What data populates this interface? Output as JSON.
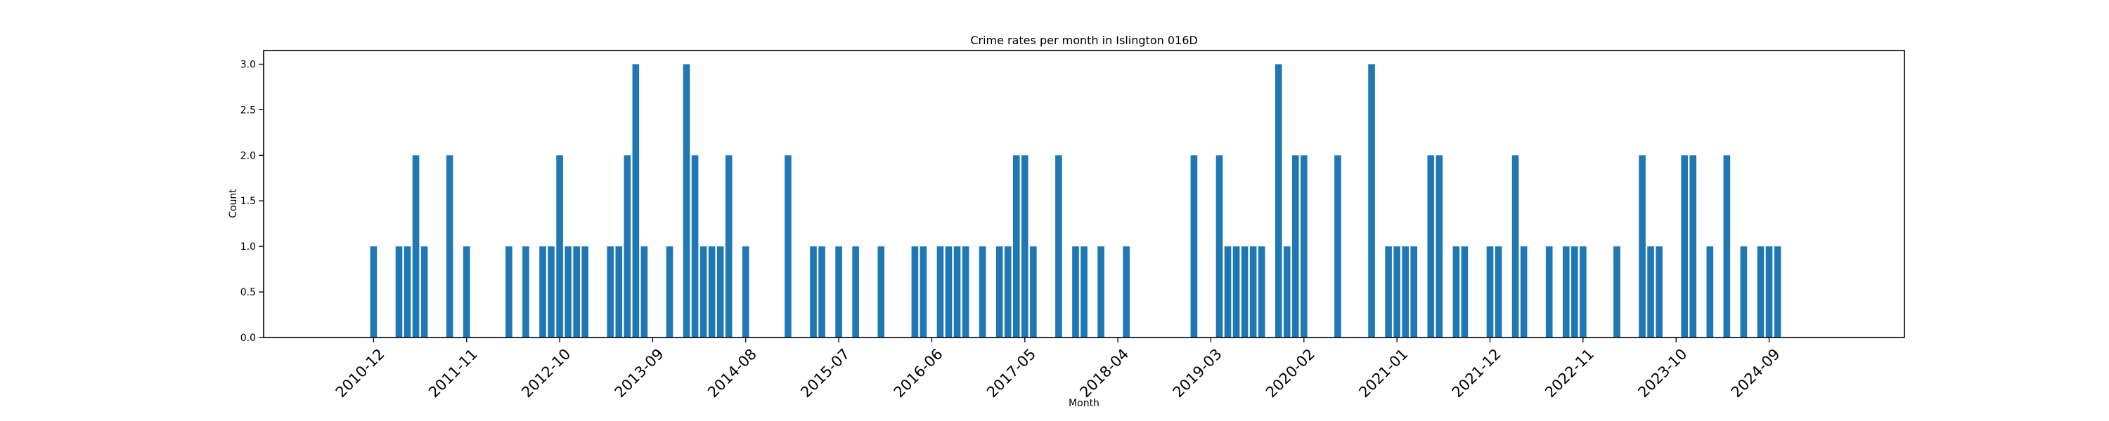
{
  "chart_data": {
    "type": "bar",
    "title": "Crime rates per month in Islington 016D",
    "xlabel": "Month",
    "ylabel": "Count",
    "ylim": [
      0,
      3.15
    ],
    "xlim": [
      "2009-11",
      "2026-01"
    ],
    "yticks": [
      "0.0",
      "0.5",
      "1.0",
      "1.5",
      "2.0",
      "2.5",
      "3.0"
    ],
    "xticks": [
      "2010-12",
      "2011-11",
      "2012-10",
      "2013-09",
      "2014-08",
      "2015-07",
      "2016-06",
      "2017-05",
      "2018-04",
      "2019-03",
      "2020-02",
      "2021-01",
      "2021-12",
      "2022-11",
      "2023-10",
      "2024-09"
    ],
    "x": [
      "2010-12",
      "2011-03",
      "2011-04",
      "2011-05",
      "2011-06",
      "2011-09",
      "2011-11",
      "2012-04",
      "2012-06",
      "2012-08",
      "2012-09",
      "2012-10",
      "2012-11",
      "2012-12",
      "2013-01",
      "2013-04",
      "2013-05",
      "2013-06",
      "2013-07",
      "2013-08",
      "2013-11",
      "2014-01",
      "2014-02",
      "2014-03",
      "2014-04",
      "2014-05",
      "2014-06",
      "2014-08",
      "2015-01",
      "2015-04",
      "2015-05",
      "2015-07",
      "2015-09",
      "2015-12",
      "2016-04",
      "2016-05",
      "2016-07",
      "2016-08",
      "2016-09",
      "2016-10",
      "2016-12",
      "2017-02",
      "2017-03",
      "2017-04",
      "2017-05",
      "2017-06",
      "2017-09",
      "2017-11",
      "2017-12",
      "2018-02",
      "2018-05",
      "2019-01",
      "2019-04",
      "2019-05",
      "2019-06",
      "2019-07",
      "2019-08",
      "2019-09",
      "2019-11",
      "2019-12",
      "2020-01",
      "2020-02",
      "2020-06",
      "2020-10",
      "2020-12",
      "2021-01",
      "2021-02",
      "2021-03",
      "2021-05",
      "2021-06",
      "2021-08",
      "2021-09",
      "2021-12",
      "2022-01",
      "2022-03",
      "2022-04",
      "2022-07",
      "2022-09",
      "2022-10",
      "2022-11",
      "2023-03",
      "2023-06",
      "2023-07",
      "2023-08",
      "2023-11",
      "2023-12",
      "2024-02",
      "2024-04",
      "2024-06",
      "2024-08",
      "2024-09",
      "2024-10"
    ],
    "values": [
      1,
      1,
      1,
      2,
      1,
      2,
      1,
      1,
      1,
      1,
      1,
      2,
      1,
      1,
      1,
      1,
      1,
      2,
      3,
      1,
      1,
      3,
      2,
      1,
      1,
      1,
      2,
      1,
      2,
      1,
      1,
      1,
      1,
      1,
      1,
      1,
      1,
      1,
      1,
      1,
      1,
      1,
      1,
      2,
      2,
      1,
      2,
      1,
      1,
      1,
      1,
      2,
      2,
      1,
      1,
      1,
      1,
      1,
      3,
      1,
      2,
      2,
      2,
      3,
      1,
      1,
      1,
      1,
      2,
      2,
      1,
      1,
      1,
      1,
      2,
      1,
      1,
      1,
      1,
      1,
      1,
      2,
      1,
      1,
      2,
      2,
      1,
      2,
      1,
      1,
      1,
      1
    ],
    "color": "#1f77b4",
    "grid": false,
    "legend": "none"
  }
}
